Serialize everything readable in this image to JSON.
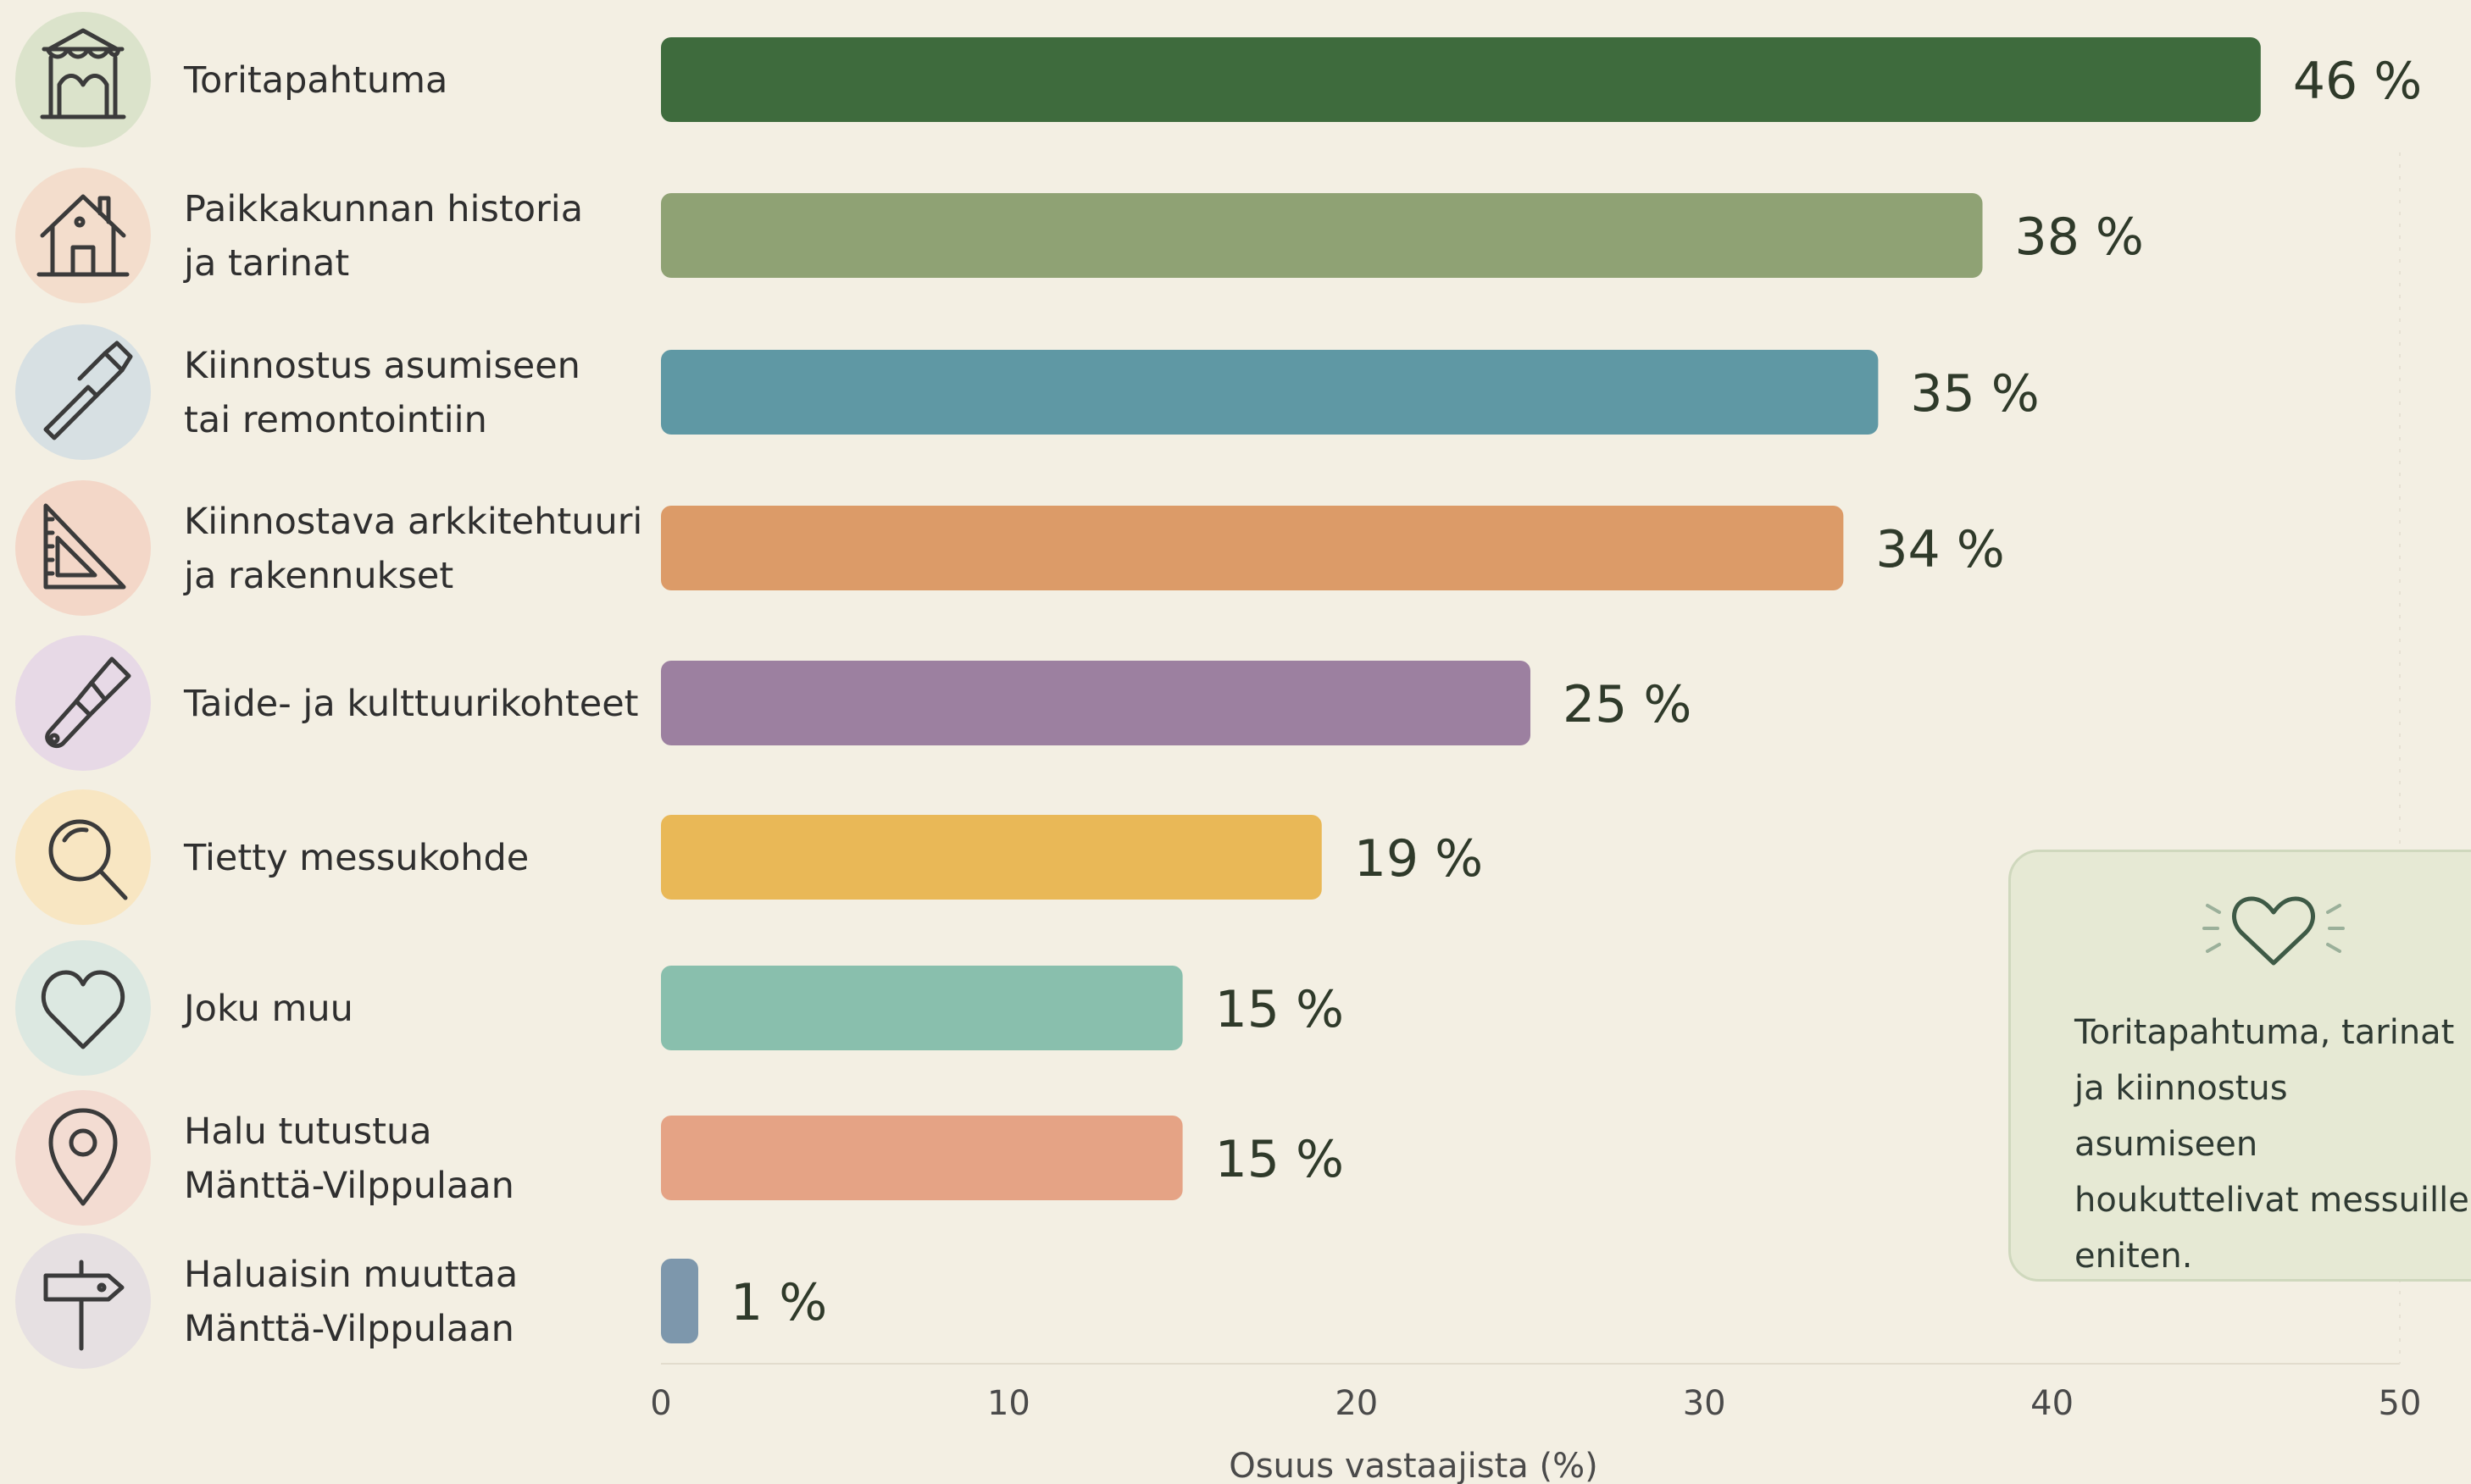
{
  "chart_data": {
    "type": "bar",
    "orientation": "horizontal",
    "categories": [
      [
        "Toritapahtuma"
      ],
      [
        "Paikkakunnan historia",
        "ja tarinat"
      ],
      [
        "Kiinnostus asumiseen",
        "tai remontointiin"
      ],
      [
        "Kiinnostava arkkitehtuuri",
        "ja rakennukset"
      ],
      [
        "Taide- ja kulttuurikohteet"
      ],
      [
        "Tietty messukohde"
      ],
      [
        "Joku muu"
      ],
      [
        "Halu tutustua",
        "Mänttä-Vilppulaan"
      ],
      [
        "Haluaisin muuttaa",
        "Mänttä-Vilppulaan"
      ]
    ],
    "values": [
      46,
      38,
      35,
      34,
      25,
      19,
      15,
      15,
      1
    ],
    "value_labels": [
      "46 %",
      "38 %",
      "35 %",
      "34 %",
      "25 %",
      "19 %",
      "15 %",
      "15 %",
      "1 %"
    ],
    "colors": [
      "#3e6b3d",
      "#8fa274",
      "#5f98a4",
      "#dc9b68",
      "#9c80a0",
      "#e9b857",
      "#89bfad",
      "#e5a385",
      "#7d97ac"
    ],
    "icons": [
      "market-tent-icon",
      "house-icon",
      "hammer-icon",
      "set-square-icon",
      "brush-icon",
      "magnifier-icon",
      "heart-icon",
      "location-pin-icon",
      "signpost-icon"
    ],
    "icon_bg_colors": [
      "#dbe3cb",
      "#f3ddcc",
      "#d7e0e3",
      "#f3d7c8",
      "#e7d9e6",
      "#f8e6c2",
      "#dce8e1",
      "#f3dcd2",
      "#e6e0e2"
    ],
    "xlabel": "Osuus vastaajista (%)",
    "xlim": [
      0,
      50
    ],
    "xticks": [
      "0",
      "10",
      "20",
      "30",
      "40",
      "50"
    ],
    "grid": false
  },
  "callout": {
    "icon": "heart-icon",
    "text": "Toritapahtuma, tarinat\nja kiinnostus asumiseen\nhoukuttelivat messuille\neniten."
  }
}
